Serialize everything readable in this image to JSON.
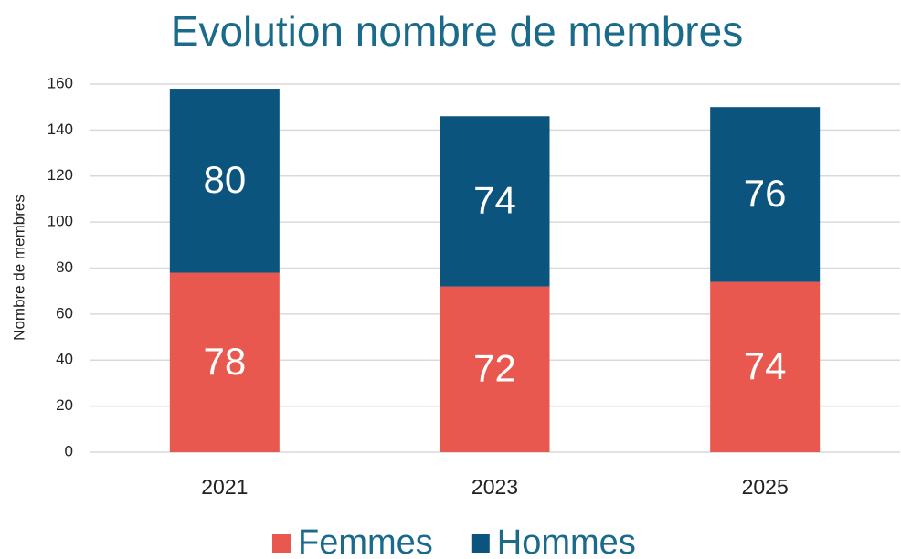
{
  "chart_data": {
    "type": "stacked_bar",
    "title": "Evolution nombre de membres",
    "y_label": "Nombre de membres",
    "categories": [
      "2021",
      "2023",
      "2025"
    ],
    "series": [
      {
        "name": "Femmes",
        "color": "#e8584e",
        "values": [
          78,
          72,
          74
        ]
      },
      {
        "name": "Hommes",
        "color": "#0b547e",
        "values": [
          80,
          74,
          76
        ]
      }
    ],
    "ylim": [
      0,
      160
    ],
    "yticks": [
      0,
      20,
      40,
      60,
      80,
      100,
      120,
      140,
      160
    ],
    "grid": true,
    "legend": "bottom"
  }
}
